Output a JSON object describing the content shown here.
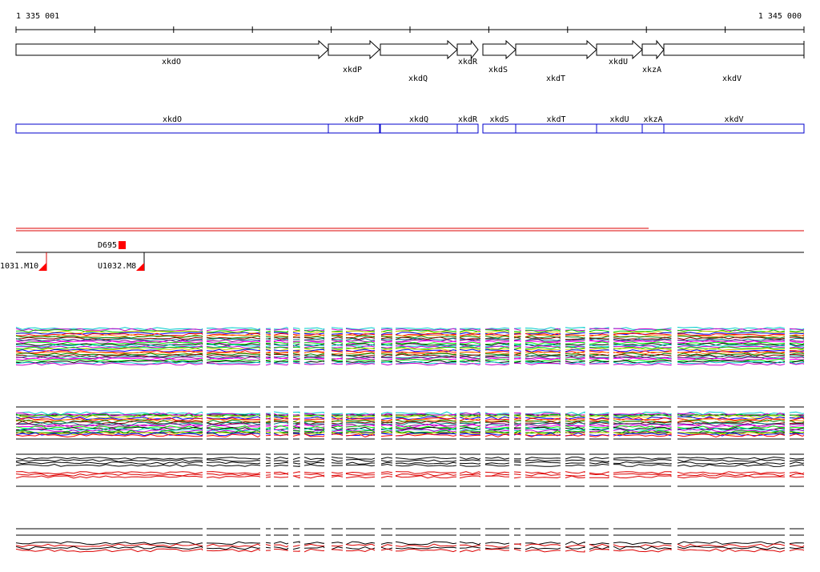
{
  "ruler": {
    "start": "1 335 001",
    "end": "1 345 000"
  },
  "genes": [
    "xkdO",
    "xkdP",
    "xkdQ",
    "xkdR",
    "xkdS",
    "xkdT",
    "xkdU",
    "xkzA",
    "xkdV"
  ],
  "boxes": [
    "xkdO",
    "xkdP",
    "xkdQ",
    "xkdR",
    "xkdS",
    "xkdT",
    "xkdU",
    "xkzA",
    "xkdV"
  ],
  "features": {
    "marker": "D695",
    "left_probe": "1031.M10",
    "right_probe": "U1032.M8"
  }
}
